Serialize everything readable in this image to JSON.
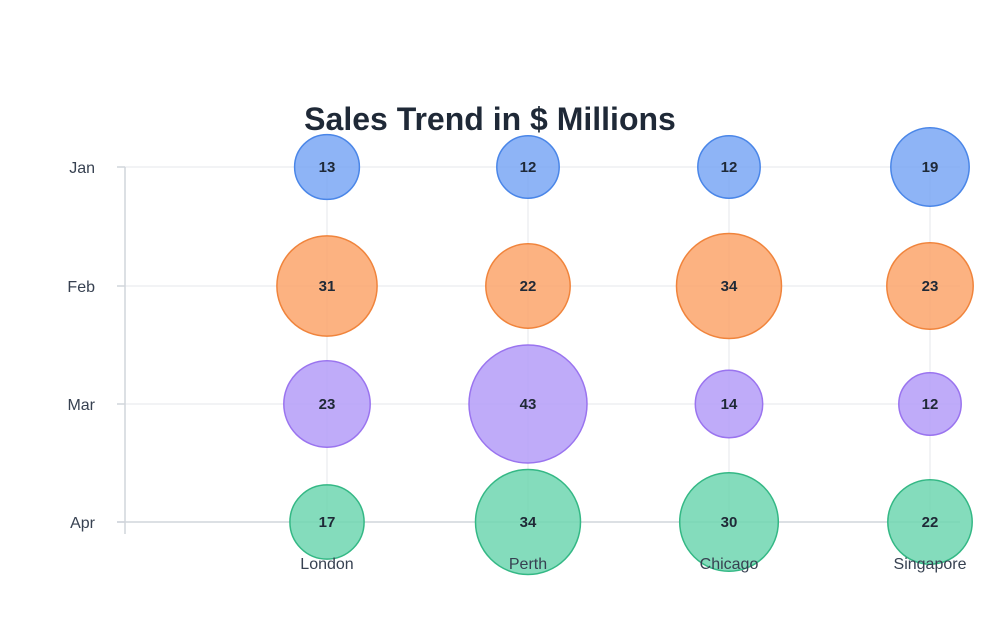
{
  "chart_data": {
    "type": "scatter",
    "subtype": "bubble-grid",
    "title": "Sales Trend in $ Millions",
    "xlabel": "",
    "ylabel": "",
    "x_categories": [
      "London",
      "Perth",
      "Chicago",
      "Singapore"
    ],
    "y_categories": [
      "Jan",
      "Feb",
      "Mar",
      "Apr"
    ],
    "series": [
      {
        "values": [
          13,
          12,
          12,
          19
        ],
        "color": "#7aa7f5",
        "stroke": "#4a86e8"
      },
      {
        "values": [
          31,
          22,
          34,
          23
        ],
        "color": "#fba56b",
        "stroke": "#f0843c"
      },
      {
        "values": [
          23,
          43,
          14,
          12
        ],
        "color": "#b49cf8",
        "stroke": "#9a74ef"
      },
      {
        "values": [
          17,
          34,
          30,
          22
        ],
        "color": "#6fd6b0",
        "stroke": "#34b885"
      }
    ],
    "grid": true,
    "legend": "none"
  }
}
